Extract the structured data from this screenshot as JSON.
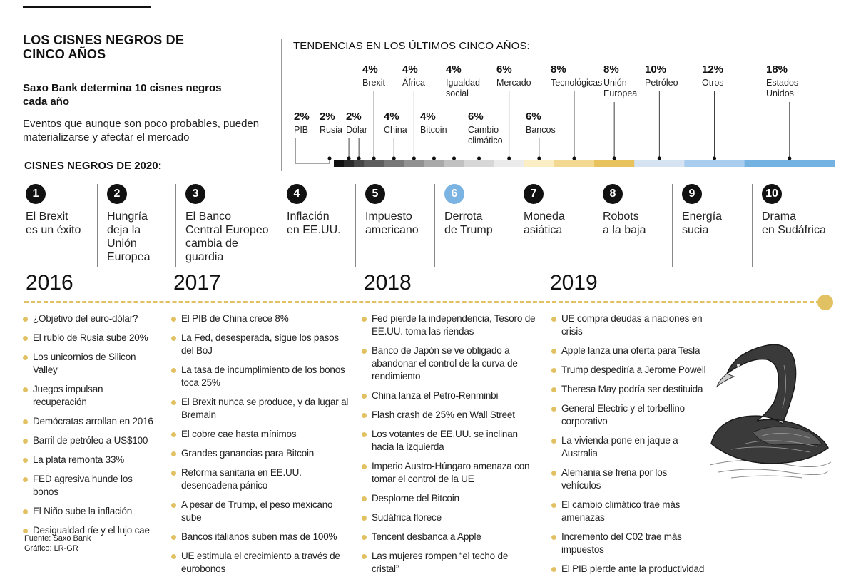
{
  "header": {
    "title": "LOS CISNES NEGROS DE CINCO AÑOS",
    "subtitle_bold": "Saxo Bank determina 10 cisnes negros cada año",
    "subtitle": "Eventos que aunque son poco probables, pueden materializarse y afectar el mercado",
    "swans_title": "CISNES NEGROS DE 2020:",
    "trends_title": "TENDENCIAS EN LOS ÚLTIMOS CINCO AÑOS:"
  },
  "chart_data": {
    "type": "bar",
    "title": "TENDENCIAS EN LOS ÚLTIMOS CINCO AÑOS:",
    "categories": [
      "PIB",
      "Rusia",
      "Dólar",
      "Brexit",
      "China",
      "África",
      "Bitcoin",
      "Igualdad social",
      "Cambio climático",
      "Mercado",
      "Bancos",
      "Tecnológicas",
      "Unión Europea",
      "Petróleo",
      "Otros",
      "Estados Unidos"
    ],
    "values": [
      2,
      2,
      2,
      4,
      4,
      4,
      4,
      4,
      6,
      6,
      6,
      8,
      8,
      10,
      12,
      18
    ],
    "labels": [
      "2%",
      "2%",
      "2%",
      "4%",
      "4%",
      "4%",
      "4%",
      "4%",
      "6%",
      "6%",
      "6%",
      "8%",
      "8%",
      "10%",
      "12%",
      "18%"
    ],
    "colors": [
      "#111111",
      "#2b2b2b",
      "#474747",
      "#5e5e5e",
      "#787878",
      "#919191",
      "#a9a9a9",
      "#c1c1c1",
      "#d7d7d7",
      "#ebebeb",
      "#fbedc4",
      "#f2d891",
      "#e8c35d",
      "#d5e3f3",
      "#a8cdee",
      "#74b2e2"
    ]
  },
  "swans_2020": [
    {
      "num": "1",
      "text": "El Brexit\nes un éxito"
    },
    {
      "num": "2",
      "text": "Hungría\ndeja la\nUnión\nEuropea"
    },
    {
      "num": "3",
      "text": "El Banco\nCentral Europeo\ncambia de\nguardia"
    },
    {
      "num": "4",
      "text": "Inflación\nen EE.UU."
    },
    {
      "num": "5",
      "text": "Impuesto\namericano"
    },
    {
      "num": "6",
      "text": "Derrota\nde Trump"
    },
    {
      "num": "7",
      "text": "Moneda\nasiática"
    },
    {
      "num": "8",
      "text": "Robots\na la baja"
    },
    {
      "num": "9",
      "text": "Energía\nsucia"
    },
    {
      "num": "10",
      "text": "Drama\nen Sudáfrica"
    }
  ],
  "years": [
    "2016",
    "2017",
    "2018",
    "2019"
  ],
  "events": {
    "y2016": [
      "¿Objetivo del euro-dólar?",
      "El rublo de Rusia sube 20%",
      "Los unicornios de Silicon Valley",
      "Juegos impulsan recuperación",
      "Demócratas arrollan en 2016",
      "Barril de petróleo a US$100",
      "La plata remonta 33%",
      "FED agresiva hunde los bonos",
      "El Niño sube la inflación",
      "Desigualdad ríe  y el lujo cae"
    ],
    "y2017": [
      "El PIB de China crece 8%",
      "La Fed, desesperada, sigue los pasos del BoJ",
      " La tasa de incumplimiento de los bonos toca 25%",
      "El Brexit nunca se produce, y da lugar al Bremain",
      "El cobre cae hasta mínimos",
      "Grandes ganancias para Bitcoin",
      "Reforma sanitaria en EE.UU. desencadena pánico",
      "A pesar de Trump, el peso mexicano sube",
      "Bancos italianos suben más de 100%",
      "UE estimula el crecimiento a través de eurobonos"
    ],
    "y2018": [
      "Fed pierde la independencia, Tesoro de EE.UU. toma las riendas",
      "Banco de Japón se ve obligado a abandonar el control de la curva de rendimiento",
      "China lanza el Petro-Renminbi",
      "Flash crash de 25% en Wall Street",
      "Los votantes de EE.UU. se inclinan hacia la izquierda",
      "Imperio Austro-Húngaro amenaza con tomar el control de la UE",
      "Desplome del Bitcoin",
      "Sudáfrica florece",
      "Tencent desbanca a Apple",
      "Las mujeres rompen “el techo de cristal”"
    ],
    "y2019": [
      "UE compra deudas a naciones en crisis",
      "Apple lanza una oferta para Tesla",
      "Trump despediría a Jerome Powell",
      "Theresa May podría ser destituida",
      "General Electric y el torbellino corporativo",
      "La vivienda pone en jaque a Australia",
      "Alemania se frena por los vehículos",
      "El cambio climático trae más amenazas",
      "Incremento del C02 trae más impuestos",
      "El PIB pierde ante la productividad"
    ]
  },
  "footer": {
    "source": "Fuente: Saxo Bank",
    "graphic": "Gráfico: LR-GR"
  }
}
